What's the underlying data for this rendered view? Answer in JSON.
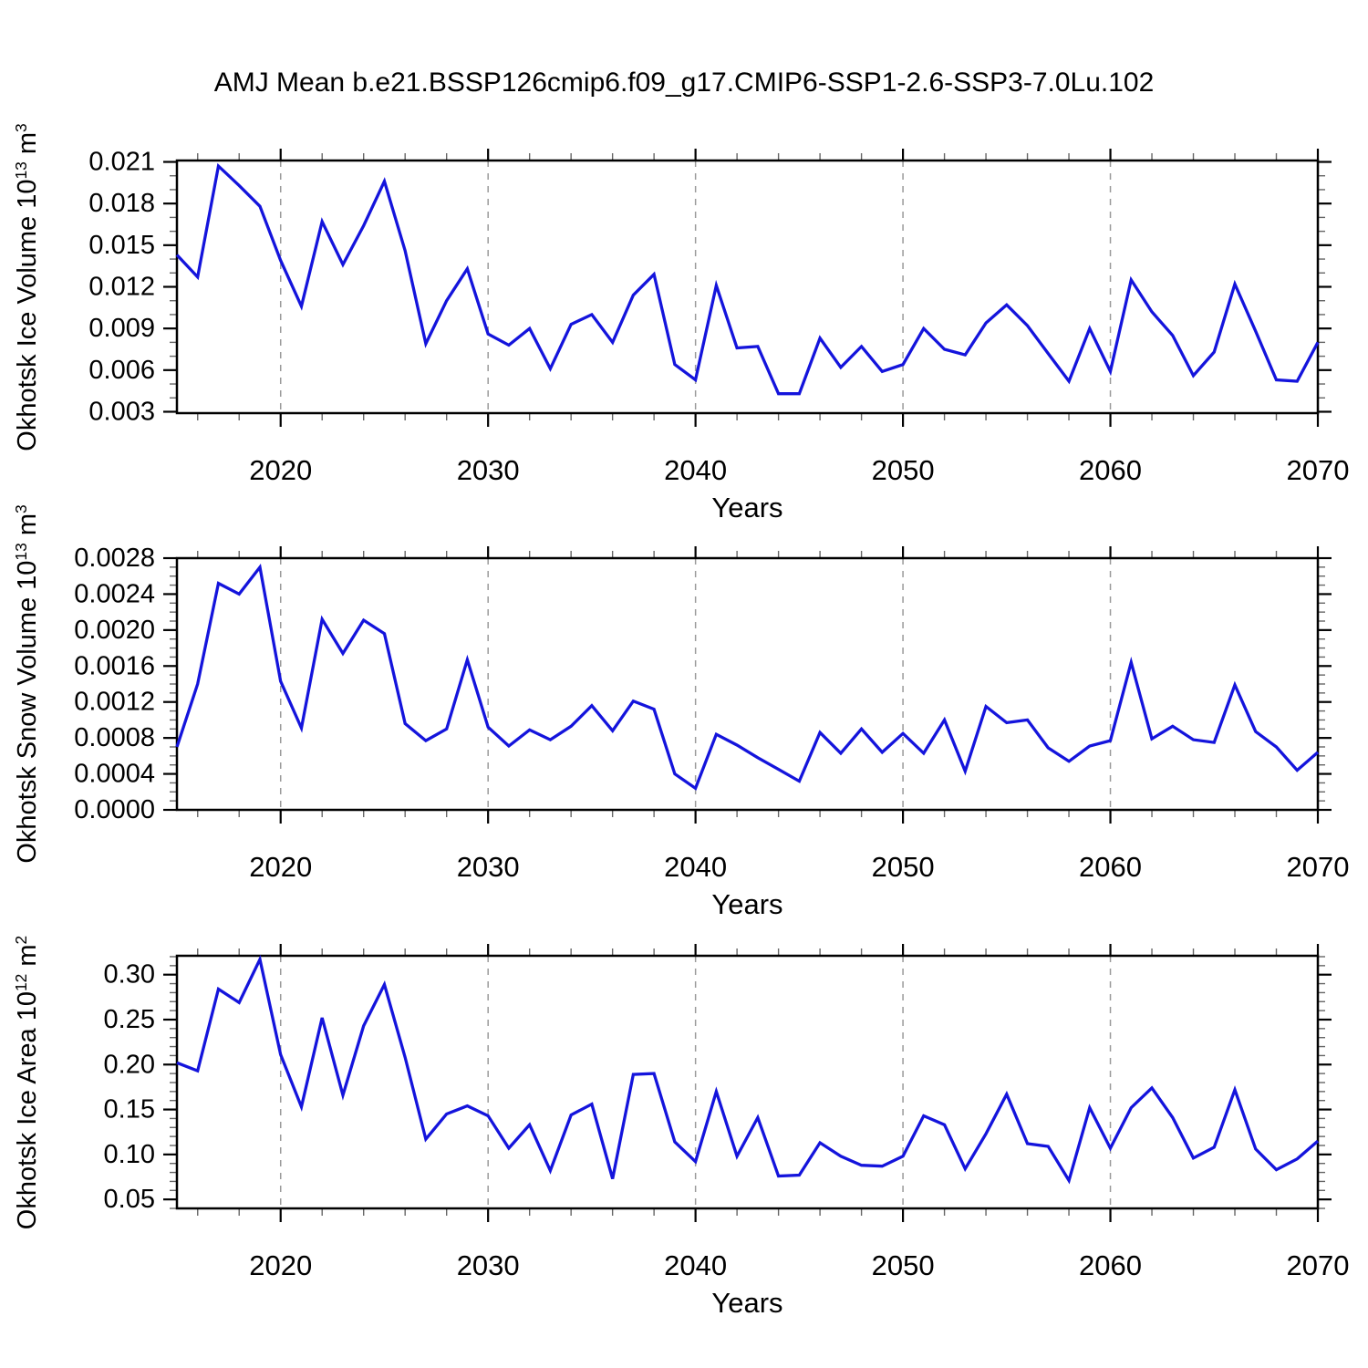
{
  "title": "AMJ Mean b.e21.BSSP126cmip6.f09_g17.CMIP6-SSP1-2.6-SSP3-7.0Lu.102",
  "line_color": "#1414dc",
  "gridline_color": "#9a9a9a",
  "axis_color": "#000000",
  "minor_tick_color": "#666666",
  "years": [
    2015,
    2016,
    2017,
    2018,
    2019,
    2020,
    2021,
    2022,
    2023,
    2024,
    2025,
    2026,
    2027,
    2028,
    2029,
    2030,
    2031,
    2032,
    2033,
    2034,
    2035,
    2036,
    2037,
    2038,
    2039,
    2040,
    2041,
    2042,
    2043,
    2044,
    2045,
    2046,
    2047,
    2048,
    2049,
    2050,
    2051,
    2052,
    2053,
    2054,
    2055,
    2056,
    2057,
    2058,
    2059,
    2060,
    2061,
    2062,
    2063,
    2064,
    2065,
    2066,
    2067,
    2068,
    2069,
    2070
  ],
  "chart_data": [
    {
      "type": "line",
      "name": "okhotsk-ice-volume",
      "ylabel": "Okhotsk Ice Volume 10^13 m^3",
      "ylabel_parts": [
        {
          "t": "Okhotsk Ice Volume 10"
        },
        {
          "t": "13",
          "sup": true
        },
        {
          "t": " m"
        },
        {
          "t": "3",
          "sup": true
        }
      ],
      "xlabel": "Years",
      "xlim": [
        2015,
        2070
      ],
      "ylim": [
        0.0029,
        0.0211
      ],
      "xticks": [
        2020,
        2030,
        2040,
        2050,
        2060,
        2070
      ],
      "xtick_labels": [
        "2020",
        "2030",
        "2040",
        "2050",
        "2060",
        "2070"
      ],
      "minor_step_x": 2,
      "yticks": [
        0.003,
        0.006,
        0.009,
        0.012,
        0.015,
        0.018,
        0.021
      ],
      "ytick_labels": [
        "0.003",
        "0.006",
        "0.009",
        "0.012",
        "0.015",
        "0.018",
        "0.021"
      ],
      "minor_step_y": 0.001,
      "gridlines_x": [
        2020,
        2030,
        2040,
        2050,
        2060
      ],
      "grid": true,
      "legend": "none",
      "values": [
        0.0143,
        0.0127,
        0.0207,
        0.0193,
        0.0178,
        0.0139,
        0.0106,
        0.0167,
        0.0136,
        0.0164,
        0.0196,
        0.0146,
        0.0079,
        0.011,
        0.0133,
        0.0086,
        0.0078,
        0.009,
        0.0061,
        0.0093,
        0.01,
        0.008,
        0.0114,
        0.0129,
        0.0064,
        0.0053,
        0.0121,
        0.0076,
        0.0077,
        0.0043,
        0.0043,
        0.0083,
        0.0062,
        0.0077,
        0.0059,
        0.0064,
        0.009,
        0.0075,
        0.0071,
        0.0094,
        0.0107,
        0.0092,
        0.0072,
        0.0052,
        0.009,
        0.0059,
        0.0125,
        0.0102,
        0.0085,
        0.0056,
        0.0073,
        0.0122,
        0.0088,
        0.0053,
        0.0052,
        0.008
      ]
    },
    {
      "type": "line",
      "name": "okhotsk-snow-volume",
      "ylabel": "Okhotsk Snow Volume 10^13 m^3",
      "ylabel_parts": [
        {
          "t": "Okhotsk Snow Volume 10"
        },
        {
          "t": "13",
          "sup": true
        },
        {
          "t": " m"
        },
        {
          "t": "3",
          "sup": true
        }
      ],
      "xlabel": "Years",
      "xlim": [
        2015,
        2070
      ],
      "ylim": [
        0.0,
        0.0028
      ],
      "xticks": [
        2020,
        2030,
        2040,
        2050,
        2060,
        2070
      ],
      "xtick_labels": [
        "2020",
        "2030",
        "2040",
        "2050",
        "2060",
        "2070"
      ],
      "minor_step_x": 2,
      "yticks": [
        0.0,
        0.0004,
        0.0008,
        0.0012,
        0.0016,
        0.002,
        0.0024,
        0.0028
      ],
      "ytick_labels": [
        "0.0000",
        "0.0004",
        "0.0008",
        "0.0012",
        "0.0016",
        "0.0020",
        "0.0024",
        "0.0028"
      ],
      "minor_step_y": 0.0001,
      "gridlines_x": [
        2020,
        2030,
        2040,
        2050,
        2060
      ],
      "grid": true,
      "legend": "none",
      "values": [
        0.0007,
        0.0014,
        0.00252,
        0.0024,
        0.0027,
        0.00143,
        0.00091,
        0.00212,
        0.00174,
        0.00211,
        0.00196,
        0.00096,
        0.00077,
        0.0009,
        0.00167,
        0.00092,
        0.00071,
        0.00089,
        0.00078,
        0.00093,
        0.00116,
        0.00088,
        0.00121,
        0.00112,
        0.0004,
        0.00024,
        0.00084,
        0.00072,
        0.00058,
        0.00045,
        0.00032,
        0.00086,
        0.00063,
        0.0009,
        0.00064,
        0.00085,
        0.00063,
        0.001,
        0.00043,
        0.00115,
        0.00097,
        0.001,
        0.00069,
        0.00054,
        0.00071,
        0.00077,
        0.00164,
        0.00079,
        0.00093,
        0.00078,
        0.00075,
        0.00139,
        0.00087,
        0.0007,
        0.00044,
        0.00064
      ]
    },
    {
      "type": "line",
      "name": "okhotsk-ice-area",
      "ylabel": "Okhotsk Ice Area 10^12 m^2",
      "ylabel_parts": [
        {
          "t": "Okhotsk Ice Area 10"
        },
        {
          "t": "12",
          "sup": true
        },
        {
          "t": " m"
        },
        {
          "t": "2",
          "sup": true
        }
      ],
      "xlabel": "Years",
      "xlim": [
        2015,
        2070
      ],
      "ylim": [
        0.04,
        0.321
      ],
      "xticks": [
        2020,
        2030,
        2040,
        2050,
        2060,
        2070
      ],
      "xtick_labels": [
        "2020",
        "2030",
        "2040",
        "2050",
        "2060",
        "2070"
      ],
      "minor_step_x": 2,
      "yticks": [
        0.05,
        0.1,
        0.15,
        0.2,
        0.25,
        0.3
      ],
      "ytick_labels": [
        "0.05",
        "0.10",
        "0.15",
        "0.20",
        "0.25",
        "0.30"
      ],
      "minor_step_y": 0.01,
      "gridlines_x": [
        2020,
        2030,
        2040,
        2050,
        2060
      ],
      "grid": true,
      "legend": "none",
      "values": [
        0.202,
        0.193,
        0.284,
        0.269,
        0.317,
        0.211,
        0.153,
        0.252,
        0.166,
        0.243,
        0.289,
        0.208,
        0.117,
        0.145,
        0.154,
        0.143,
        0.107,
        0.133,
        0.082,
        0.144,
        0.156,
        0.073,
        0.189,
        0.19,
        0.114,
        0.092,
        0.17,
        0.098,
        0.141,
        0.076,
        0.077,
        0.113,
        0.098,
        0.088,
        0.087,
        0.098,
        0.143,
        0.133,
        0.084,
        0.123,
        0.167,
        0.112,
        0.109,
        0.071,
        0.152,
        0.107,
        0.152,
        0.174,
        0.141,
        0.096,
        0.108,
        0.172,
        0.106,
        0.083,
        0.095,
        0.115
      ]
    }
  ]
}
